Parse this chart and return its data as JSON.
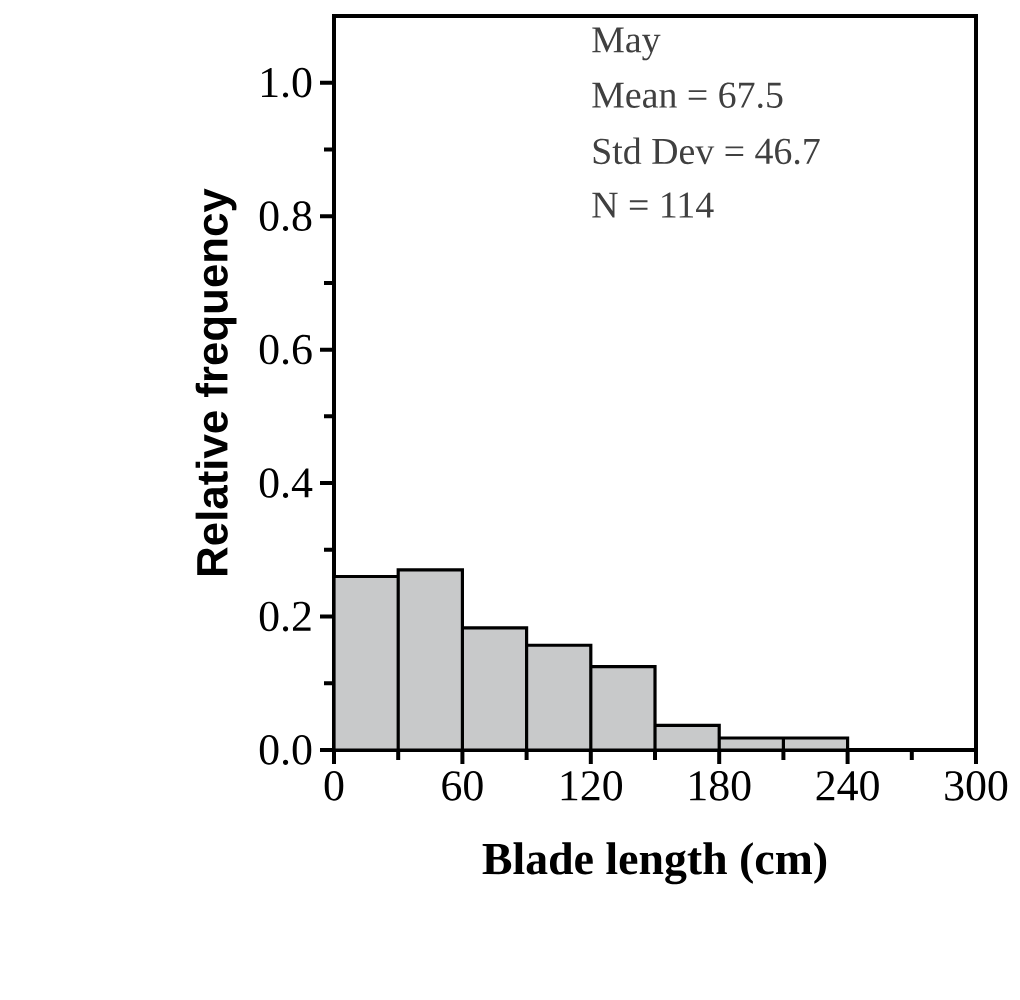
{
  "chart_data": {
    "type": "histogram",
    "bins": [
      0,
      30,
      60,
      90,
      120,
      150,
      180,
      210,
      240
    ],
    "values": [
      0.26,
      0.27,
      0.183,
      0.157,
      0.125,
      0.037,
      0.018,
      0.018
    ],
    "color": "#c8c9ca",
    "xlabel": "Blade length (cm)",
    "ylabel": "Relative frequency",
    "xlim": [
      0,
      300
    ],
    "ylim": [
      0,
      1.1
    ],
    "xticks": [
      0,
      {
        "value": 30,
        "label": null
      },
      60,
      {
        "value": 90,
        "label": null
      },
      120,
      {
        "value": 150,
        "label": null
      },
      180,
      {
        "value": 210,
        "label": null
      },
      240,
      {
        "value": 270,
        "label": null
      },
      300
    ],
    "yticks": [
      {
        "value": 0,
        "label": "0.0"
      },
      {
        "value": 0.1,
        "label": null
      },
      0.2,
      {
        "value": 0.3,
        "label": null
      },
      0.4,
      {
        "value": 0.5,
        "label": null
      },
      0.6,
      {
        "value": 0.7,
        "label": null
      },
      0.8,
      {
        "value": 0.9,
        "label": null
      },
      {
        "value": 1.0,
        "label": "1.0"
      }
    ],
    "annotations": [
      "May",
      "Mean = 67.5",
      "Std Dev = 46.7",
      "N = 114"
    ]
  }
}
